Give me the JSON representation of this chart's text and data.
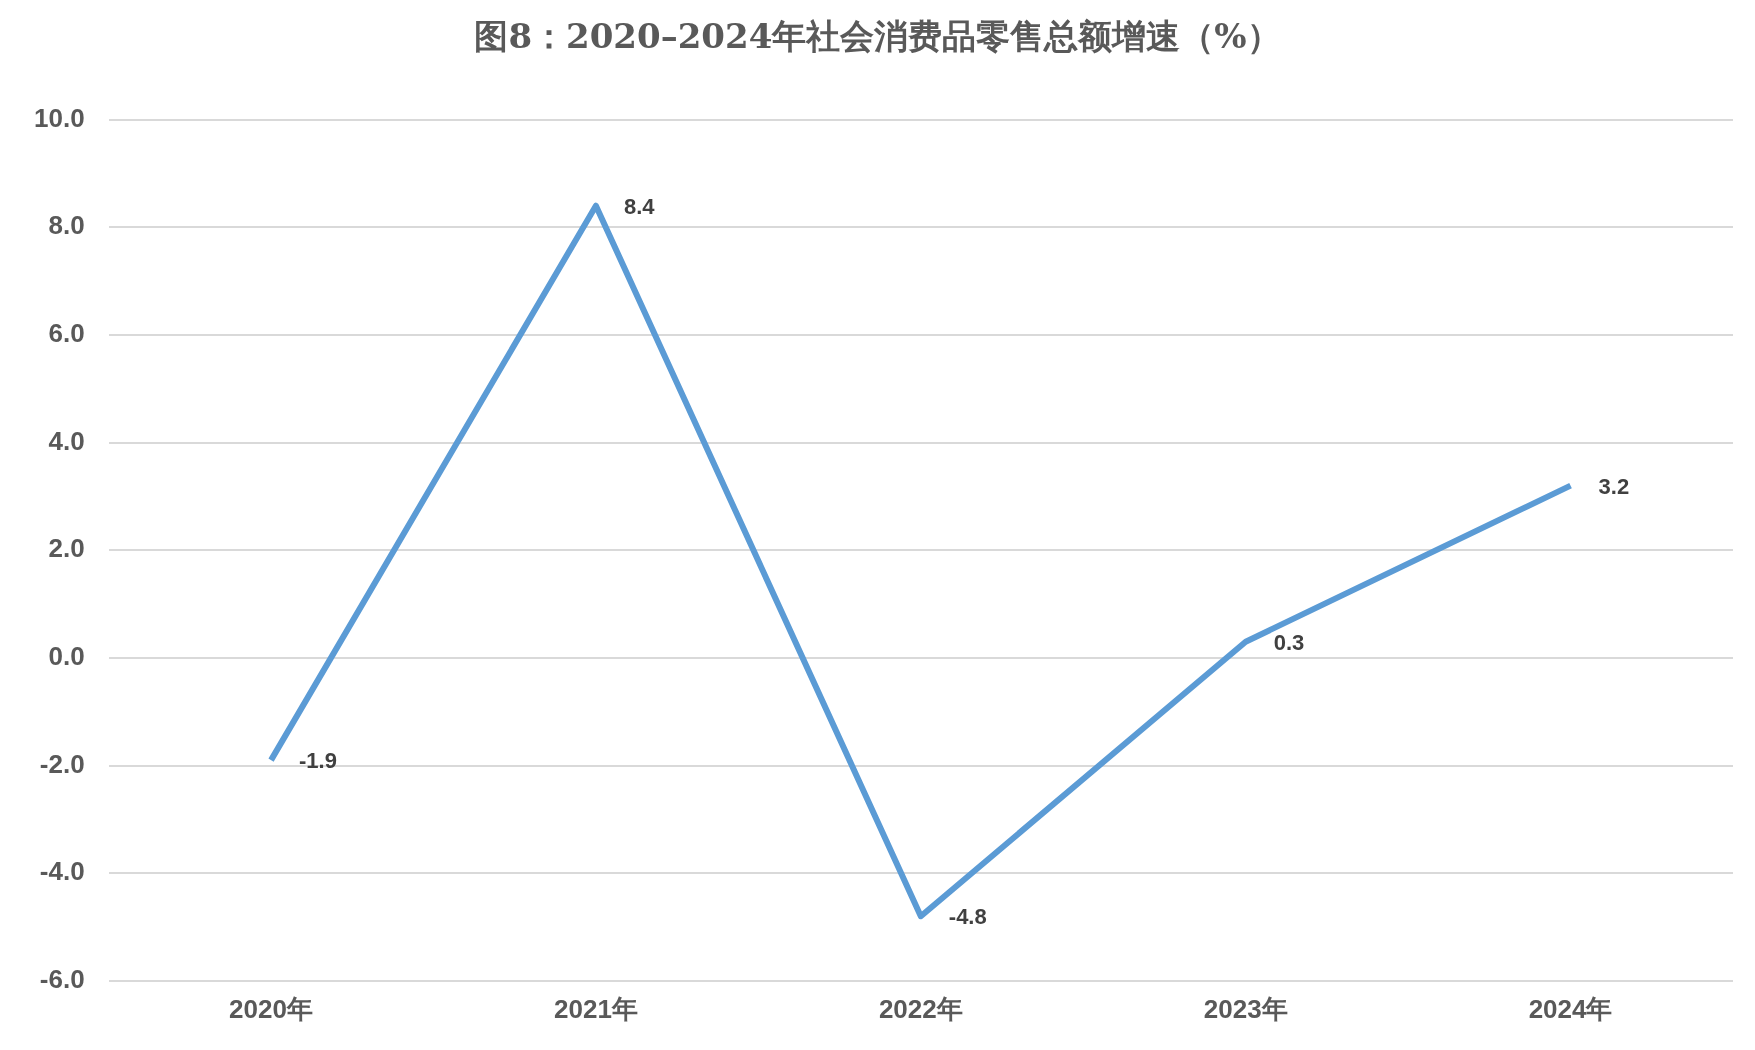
{
  "chart_data": {
    "type": "line",
    "title": "图8：2020–2024年社会消费品零售总额增速（%）",
    "categories": [
      "2020年",
      "2021年",
      "2022年",
      "2023年",
      "2024年"
    ],
    "series": [
      {
        "color": "#5b9bd5",
        "values": [
          -1.9,
          8.4,
          -4.8,
          0.3,
          3.2
        ]
      }
    ],
    "ylim": [
      -6,
      10
    ],
    "yticks": [
      {
        "value": -6,
        "label": "-6.0"
      },
      {
        "value": -4,
        "label": "-4.0"
      },
      {
        "value": -2,
        "label": "-2.0"
      },
      {
        "value": 0,
        "label": "0.0"
      },
      {
        "value": 2,
        "label": "2.0"
      },
      {
        "value": 4,
        "label": "4.0"
      },
      {
        "value": 6,
        "label": "6.0"
      },
      {
        "value": 8,
        "label": "8.0"
      },
      {
        "value": 10,
        "label": "10.0"
      }
    ],
    "grid": "y",
    "legend": false,
    "marker": "none",
    "line_style": "solid",
    "data_labels": true
  }
}
